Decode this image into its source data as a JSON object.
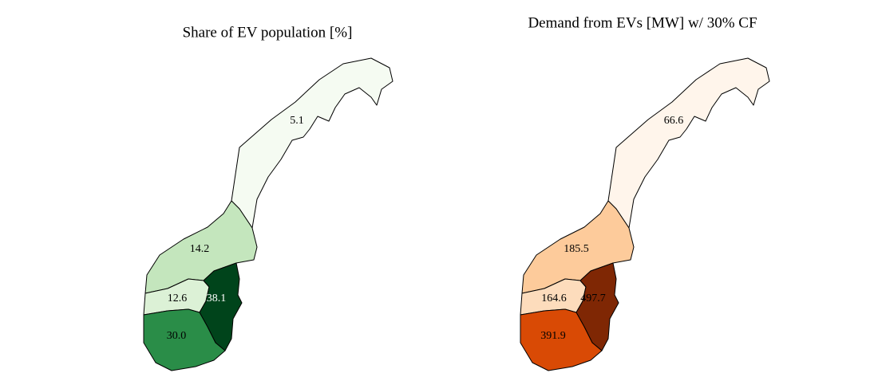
{
  "chart_data": [
    {
      "type": "choropleth",
      "title": "Share of EV population [%]",
      "values": [
        5.1,
        14.2,
        12.6,
        38.1,
        30.0
      ],
      "value_labels": [
        "5.1",
        "14.2",
        "12.6",
        "38.1",
        "30.0"
      ],
      "colors": [
        "#f5fbf2",
        "#c4e6bd",
        "#dcf1d6",
        "#00441b",
        "#2a8d48"
      ]
    },
    {
      "type": "choropleth",
      "title": "Demand from EVs [MW] w/ 30% CF",
      "values": [
        66.6,
        185.5,
        164.6,
        497.7,
        391.9
      ],
      "colors": [
        "#fff5eb",
        "#fdcb9b",
        "#fddcbc",
        "#7f2704",
        "#d94a05"
      ]
    }
  ]
}
